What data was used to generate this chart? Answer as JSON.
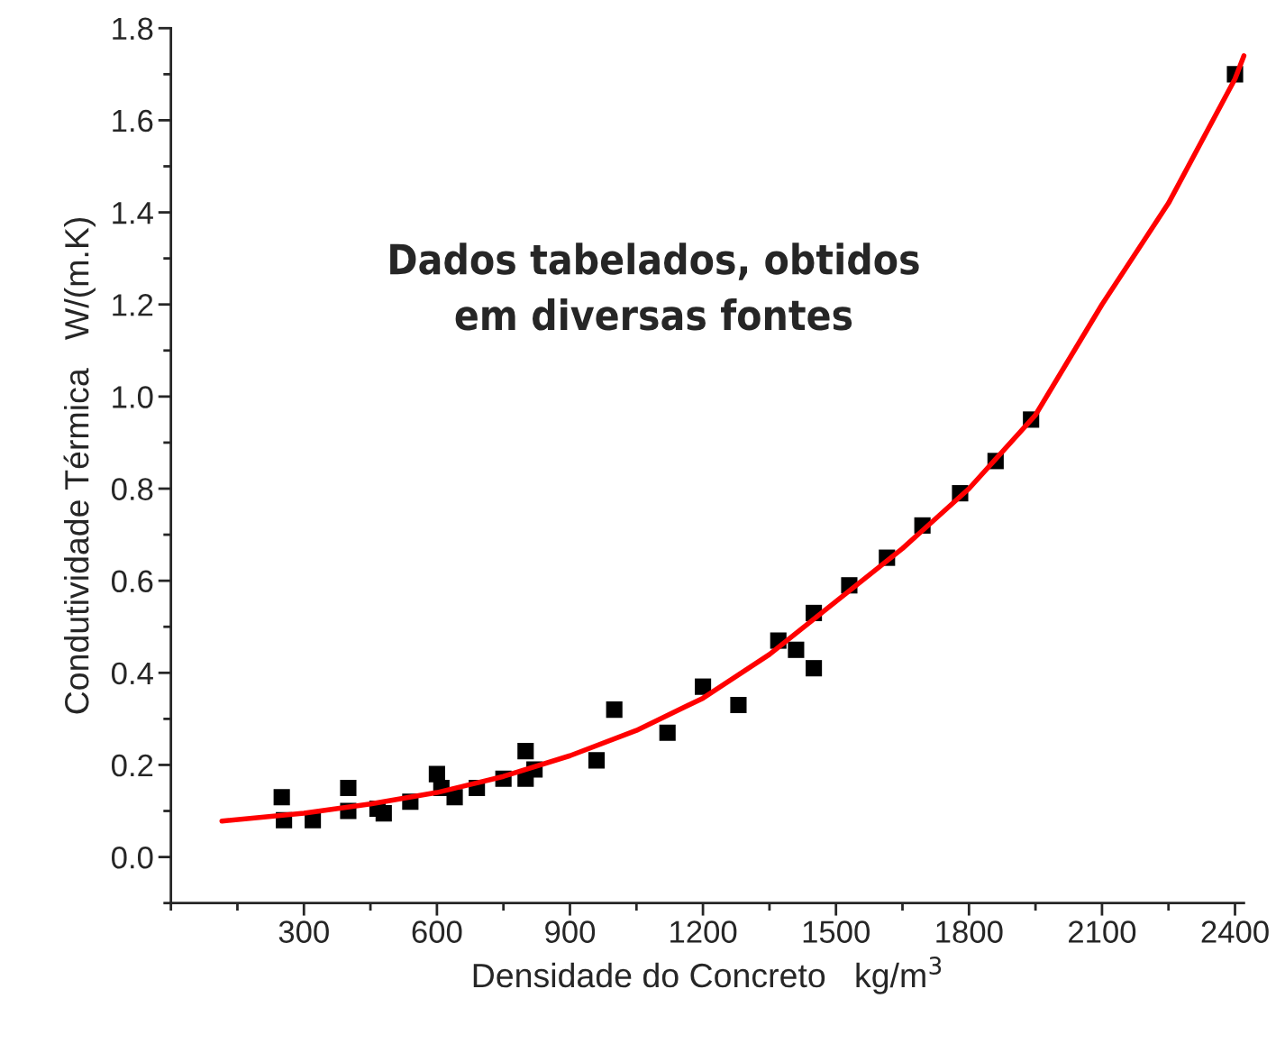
{
  "chart_data": {
    "type": "scatter",
    "xlabel": "Densidade do Concreto   kg/m$^{3}$",
    "ylabel": "Condutividade Térmica   W/(m.K)",
    "annotations": [
      "Dados tabelados, obtidos\nem diversas fontes"
    ],
    "xlim": [
      0,
      2420
    ],
    "ylim": [
      -0.1,
      1.8
    ],
    "xticks": [
      300,
      600,
      900,
      1200,
      1500,
      1800,
      2100,
      2400
    ],
    "yticks": [
      {
        "value": 0,
        "label": "0.0"
      },
      {
        "value": 0.2,
        "label": "0.2"
      },
      {
        "value": 0.4,
        "label": "0.4"
      },
      {
        "value": 0.6,
        "label": "0.6"
      },
      {
        "value": 0.8,
        "label": "0.8"
      },
      {
        "value": 1.0,
        "label": "1.0"
      },
      {
        "value": 1.2,
        "label": "1.2"
      },
      {
        "value": 1.4,
        "label": "1.4"
      },
      {
        "value": 1.6,
        "label": "1.6"
      },
      {
        "value": 1.8,
        "label": "1.8"
      }
    ],
    "grid": false,
    "legend": false,
    "series": [
      {
        "color": "#000000",
        "marker": "square",
        "x": [
          250,
          255,
          320,
          400,
          400,
          466,
          480,
          540,
          600,
          610,
          640,
          690,
          750,
          800,
          800,
          820,
          960,
          1000,
          1120,
          1200,
          1280,
          1370,
          1410,
          1450,
          1450,
          1530,
          1615,
          1695,
          1780,
          1860,
          1940,
          2400
        ],
        "values": [
          0.13,
          0.08,
          0.08,
          0.15,
          0.1,
          0.105,
          0.095,
          0.12,
          0.18,
          0.15,
          0.13,
          0.15,
          0.17,
          0.23,
          0.17,
          0.19,
          0.21,
          0.32,
          0.27,
          0.37,
          0.33,
          0.47,
          0.45,
          0.53,
          0.41,
          0.59,
          0.65,
          0.72,
          0.79,
          0.86,
          0.95,
          1.7
        ]
      },
      {
        "type": "line",
        "color": "#ff0000",
        "marker": "none",
        "line_style": "solid",
        "x": [
          115,
          300,
          450,
          600,
          750,
          900,
          1050,
          1200,
          1350,
          1500,
          1650,
          1800,
          1950,
          2100,
          2250,
          2400,
          2420
        ],
        "values": [
          0.078,
          0.095,
          0.115,
          0.14,
          0.175,
          0.22,
          0.275,
          0.345,
          0.44,
          0.555,
          0.67,
          0.8,
          0.96,
          1.2,
          1.42,
          1.69,
          1.74
        ]
      }
    ]
  }
}
